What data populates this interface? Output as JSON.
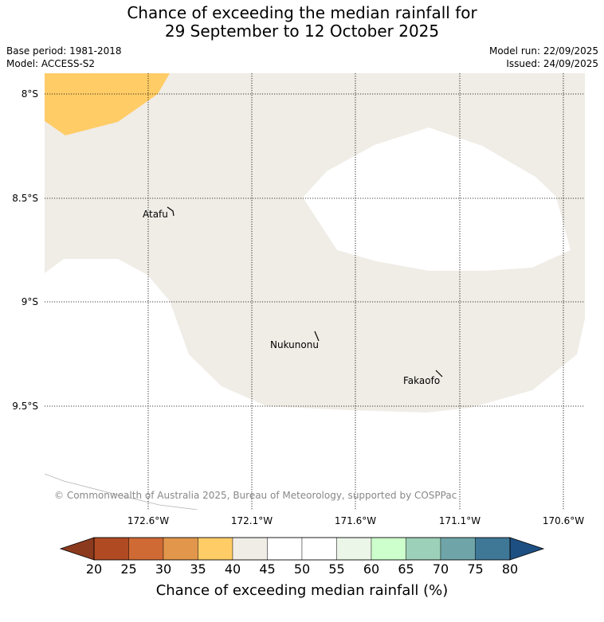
{
  "title": {
    "line1": "Chance of exceeding the median rainfall for",
    "line2": "29 September to 12 October 2025"
  },
  "meta": {
    "base_period": "Base period: 1981-2018",
    "model": "Model: ACCESS-S2",
    "model_run": "Model run: 22/09/2025",
    "issued": "Issued: 24/09/2025"
  },
  "map": {
    "lat_labels": [
      "8°S",
      "8.5°S",
      "9°S",
      "9.5°S"
    ],
    "lon_labels": [
      "172.6°W",
      "172.1°W",
      "171.6°W",
      "171.1°W",
      "170.6°W"
    ],
    "places": [
      "Atafu",
      "Nukunonu",
      "Fakaofo"
    ],
    "copyright": "© Commonwealth of Australia 2025, Bureau of Meteorology, supported by COSPPac",
    "colors": {
      "band_35_40": "#ffcc66",
      "band_40_45": "#f0ece6",
      "band_45_55": "#ffffff"
    }
  },
  "colorbar": {
    "title": "Chance of exceeding median rainfall (%)",
    "ticks": [
      "20",
      "25",
      "30",
      "35",
      "40",
      "45",
      "50",
      "55",
      "60",
      "65",
      "70",
      "75",
      "80"
    ],
    "under_color": "#8c3a1e",
    "over_color": "#1e4f82",
    "colors": [
      "#b04a23",
      "#cf6a35",
      "#e2964b",
      "#ffcc66",
      "#f0ece6",
      "#ffffff",
      "#ffffff",
      "#ebf6e8",
      "#ccffcc",
      "#9dd0b8",
      "#6fa5a8",
      "#3f7797"
    ]
  }
}
